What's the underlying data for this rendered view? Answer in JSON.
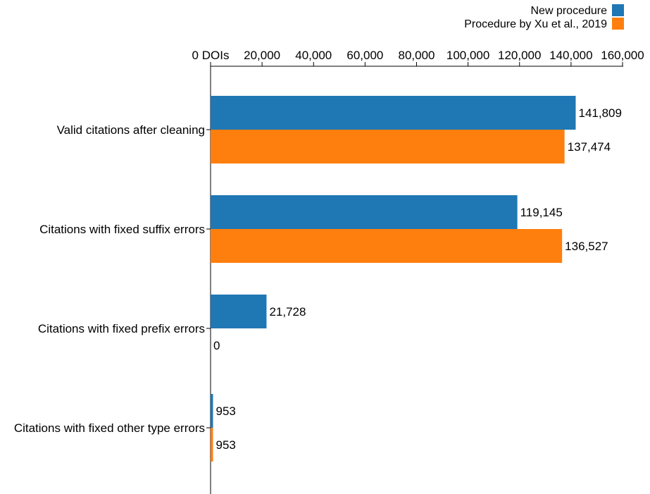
{
  "chart_data": {
    "type": "bar",
    "orientation": "horizontal",
    "axis_position": "top",
    "categories": [
      "Valid citations after cleaning",
      "Citations with fixed suffix errors",
      "Citations with fixed prefix errors",
      "Citations with fixed other type errors"
    ],
    "series": [
      {
        "name": "New procedure",
        "color": "#1f77b4",
        "values": [
          141809,
          119145,
          21728,
          953
        ]
      },
      {
        "name": "Procedure by Xu et al., 2019",
        "color": "#ff7f0e",
        "values": [
          137474,
          136527,
          0,
          953
        ]
      }
    ],
    "value_labels": [
      [
        "141,809",
        "119,145",
        "21,728",
        "953"
      ],
      [
        "137,474",
        "136,527",
        "0",
        "953"
      ]
    ],
    "xlim": [
      0,
      160000
    ],
    "ticks": [
      0,
      20000,
      40000,
      60000,
      80000,
      100000,
      120000,
      140000,
      160000
    ],
    "tick_labels": [
      "0 DOIs",
      "20,000",
      "40,000",
      "60,000",
      "80,000",
      "100,000",
      "120,000",
      "140,000",
      "160,000"
    ],
    "legend_position": "top-right",
    "grid": false
  }
}
